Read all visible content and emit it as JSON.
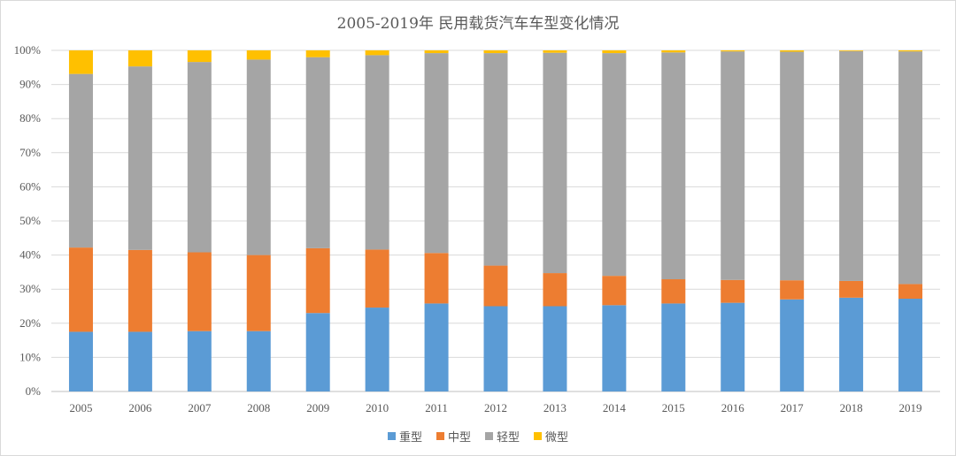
{
  "chart_data": {
    "type": "bar",
    "stacked": true,
    "percent": true,
    "title": "2005-2019年 民用载货汽车车型变化情况",
    "categories": [
      "2005",
      "2006",
      "2007",
      "2008",
      "2009",
      "2010",
      "2011",
      "2012",
      "2013",
      "2014",
      "2015",
      "2016",
      "2017",
      "2018",
      "2019"
    ],
    "y_ticks": [
      "0%",
      "10%",
      "20%",
      "30%",
      "40%",
      "50%",
      "60%",
      "70%",
      "80%",
      "90%",
      "100%"
    ],
    "ylim": [
      0,
      100
    ],
    "grid": true,
    "legend_position": "bottom",
    "series": [
      {
        "name": "重型",
        "color": "#5b9bd5",
        "values": [
          17.5,
          17.5,
          17.7,
          17.7,
          23.0,
          24.6,
          25.8,
          25.0,
          25.0,
          25.3,
          25.8,
          26.0,
          27.0,
          27.5,
          27.2
        ]
      },
      {
        "name": "中型",
        "color": "#ed7d31",
        "values": [
          24.7,
          24.0,
          23.1,
          22.3,
          19.0,
          17.0,
          14.8,
          11.9,
          9.7,
          8.6,
          7.1,
          6.7,
          5.6,
          4.9,
          4.3
        ]
      },
      {
        "name": "轻型",
        "color": "#a5a5a5",
        "values": [
          50.9,
          53.8,
          55.8,
          57.3,
          56.0,
          57.0,
          58.6,
          62.3,
          64.6,
          65.3,
          66.5,
          67.0,
          67.0,
          67.4,
          68.2
        ]
      },
      {
        "name": "微型",
        "color": "#ffc000",
        "values": [
          6.9,
          4.7,
          3.4,
          2.7,
          2.0,
          1.4,
          0.8,
          0.8,
          0.7,
          0.8,
          0.6,
          0.3,
          0.4,
          0.2,
          0.3
        ]
      }
    ]
  }
}
